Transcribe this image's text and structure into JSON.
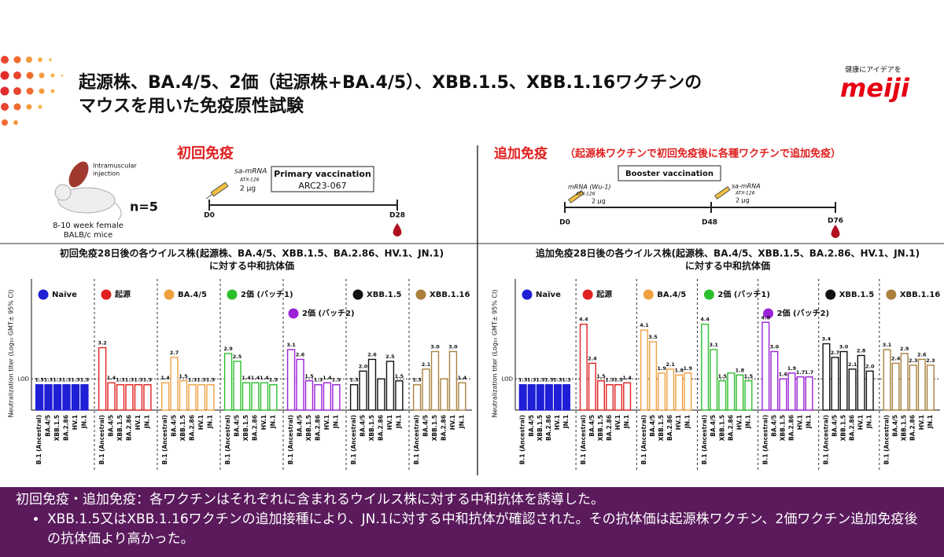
{
  "header": {
    "title": [
      "起源株、BA.4/5、2価（起源株+BA.4/5）、XBB.1.5、XBB.1.16ワクチンの",
      "マウスを用いた免疫原性試験"
    ],
    "logo_tagline": "健康にアイデアを",
    "logo": "meiji"
  },
  "primary": {
    "heading": "初回免疫",
    "injection": [
      "Intramuscular",
      "injection"
    ],
    "mice": [
      "8-10 week female",
      "BALB/c mice"
    ],
    "n": "n=5",
    "vaccine": "sa-mRNA",
    "lipid": "ATX-126",
    "dose": "2 μg",
    "box_title": "Primary vaccination",
    "box_code": "ARC23-067",
    "days": [
      "D0",
      "D28"
    ]
  },
  "booster": {
    "heading": "追加免疫",
    "subheading": "（起源株ワクチンで初回免疫後に各種ワクチンで追加免疫）",
    "box_title": "Booster vaccination",
    "vaccine1": "mRNA (Wu-1)",
    "lipid1": "ATX-126",
    "dose1": "2 μg",
    "vaccine2": "sa-mRNA",
    "lipid2": "ATX-126",
    "dose2": "2 μg",
    "days": [
      "D0",
      "D48",
      "D76"
    ]
  },
  "chart_data": [
    {
      "type": "bar",
      "title": [
        "初回免疫28日後の各ウイルス株(起源株、BA.4/5、XBB.1.5、BA.2.86、HV.1、JN.1)",
        "に対する中和抗体価"
      ],
      "y_label": "Neutralization titer (Log₁₀ GMT± 95% CI)",
      "lod": {
        "value": 1.6,
        "label": "LOD"
      },
      "ylim": [
        0,
        6
      ],
      "categories": [
        "B.1 (Ancestral)",
        "BA.4/5",
        "XBB.1.5",
        "BA.2.86",
        "HV.1",
        "JN.1"
      ],
      "series": [
        {
          "name": "Naïve",
          "color": "#1f1fd6",
          "filled": true,
          "values": [
            1.3,
            1.3,
            1.3,
            1.3,
            1.3,
            1.3
          ],
          "value_labels": [
            "1.3",
            "1.3",
            "1.3",
            "1.3",
            "1.3",
            "1.3"
          ]
        },
        {
          "name": "起源",
          "color": "#e02020",
          "filled": false,
          "values": [
            3.2,
            1.4,
            1.3,
            1.3,
            1.3,
            1.3
          ],
          "value_labels": [
            "3.2",
            "1.4",
            "1.3",
            "1.3",
            "1.3",
            "1.3"
          ]
        },
        {
          "name": "BA.4/5",
          "color": "#f0a040",
          "filled": false,
          "values": [
            1.4,
            2.7,
            1.5,
            1.3,
            1.3,
            1.3
          ],
          "value_labels": [
            "1.4",
            "2.7",
            "1.5",
            "1.3",
            "1.3",
            "1.3"
          ]
        },
        {
          "name": "2価 (バッチ1)",
          "color": "#2cbf2c",
          "filled": false,
          "values": [
            2.9,
            2.5,
            1.4,
            1.4,
            1.4,
            1.3
          ],
          "value_labels": [
            "2.9",
            "2.5",
            "1.4",
            "1.4",
            "1.4",
            "1.3"
          ]
        },
        {
          "name": "2価 (バッチ2)",
          "color": "#9b22d6",
          "filled": false,
          "values": [
            3.1,
            2.6,
            1.5,
            1.3,
            1.4,
            1.3
          ],
          "value_labels": [
            "3.1",
            "2.6",
            "1.5",
            "1.3",
            "1.4",
            "1.3"
          ]
        },
        {
          "name": "XBB.1.5",
          "color": "#111111",
          "filled": false,
          "values": [
            1.3,
            2.0,
            2.6,
            1.6,
            2.5,
            1.5
          ],
          "value_labels": [
            "1.3",
            "2.0",
            "2.6",
            null,
            "2.5",
            "1.5"
          ]
        },
        {
          "name": "XBB.1.16",
          "color": "#a8803c",
          "filled": false,
          "values": [
            1.3,
            2.1,
            3.0,
            1.6,
            3.0,
            1.4
          ],
          "value_labels": [
            "1.3",
            "2.1",
            "3.0",
            null,
            "3.0",
            "1.4"
          ]
        }
      ]
    },
    {
      "type": "bar",
      "title": [
        "追加免疫28日後の各ウイルス株(起源株、BA.4/5、XBB.1.5、BA.2.86、HV.1、JN.1)",
        "に対する中和抗体価"
      ],
      "y_label": "Neutralization titer (Log₁₀ GMT± 95% CI)",
      "lod": {
        "value": 1.6,
        "label": "LOD"
      },
      "ylim": [
        0,
        6
      ],
      "categories": [
        "B.1 (Ancestral)",
        "BA.4/5",
        "XBB.1.5",
        "BA.2.86",
        "HV.1",
        "JN.1"
      ],
      "series": [
        {
          "name": "Naïve",
          "color": "#1f1fd6",
          "filled": true,
          "values": [
            1.3,
            1.3,
            1.3,
            1.3,
            1.3,
            1.3
          ],
          "value_labels": [
            "1.3",
            "1.3",
            "1.3",
            "1.3",
            "1.3",
            "1.3"
          ]
        },
        {
          "name": "起源",
          "color": "#e02020",
          "filled": false,
          "values": [
            4.4,
            2.4,
            1.5,
            1.3,
            1.3,
            1.4
          ],
          "value_labels": [
            "4.4",
            "2.4",
            "1.5",
            "1.3",
            "1.3",
            "1.4"
          ]
        },
        {
          "name": "BA.4/5",
          "color": "#f0a040",
          "filled": false,
          "values": [
            4.1,
            3.5,
            1.9,
            2.1,
            1.8,
            1.9
          ],
          "value_labels": [
            "4.1",
            "3.5",
            "1.9",
            "2.1",
            "1.8",
            "1.9"
          ]
        },
        {
          "name": "2価 (バッチ1)",
          "color": "#2cbf2c",
          "filled": false,
          "values": [
            4.4,
            3.1,
            1.5,
            1.9,
            1.8,
            1.5
          ],
          "value_labels": [
            "4.4",
            "3.1",
            "1.5",
            null,
            "1.8",
            "1.5"
          ]
        },
        {
          "name": "2価 (バッチ2)",
          "color": "#9b22d6",
          "filled": false,
          "values": [
            4.5,
            3.0,
            1.6,
            1.9,
            1.7,
            1.7
          ],
          "value_labels": [
            "4.5",
            "3.0",
            "1.6",
            "1.9",
            "1.7",
            "1.7"
          ]
        },
        {
          "name": "XBB.1.5",
          "color": "#111111",
          "filled": false,
          "values": [
            3.4,
            2.7,
            3.0,
            2.1,
            2.8,
            2.0
          ],
          "value_labels": [
            "3.4",
            "2.7",
            "3.0",
            "2.1",
            "2.8",
            "2.0"
          ]
        },
        {
          "name": "XBB.1.16",
          "color": "#a8803c",
          "filled": false,
          "values": [
            3.1,
            2.4,
            2.9,
            2.3,
            2.6,
            2.3
          ],
          "value_labels": [
            "3.1",
            "2.4",
            "2.9",
            "2.3",
            "2.6",
            "2.3"
          ]
        }
      ]
    }
  ],
  "footer": {
    "summary": "初回免疫・追加免疫：各ワクチンはそれぞれに含まれるウイルス株に対する中和抗体を誘導した。",
    "bullets": [
      "XBB.1.5又はXBB.1.16ワクチンの追加接種により、JN.1に対する中和抗体が確認された。その抗体価は起源株ワクチン、2価ワクチン追加免疫後の抗体価より高かった。"
    ]
  }
}
